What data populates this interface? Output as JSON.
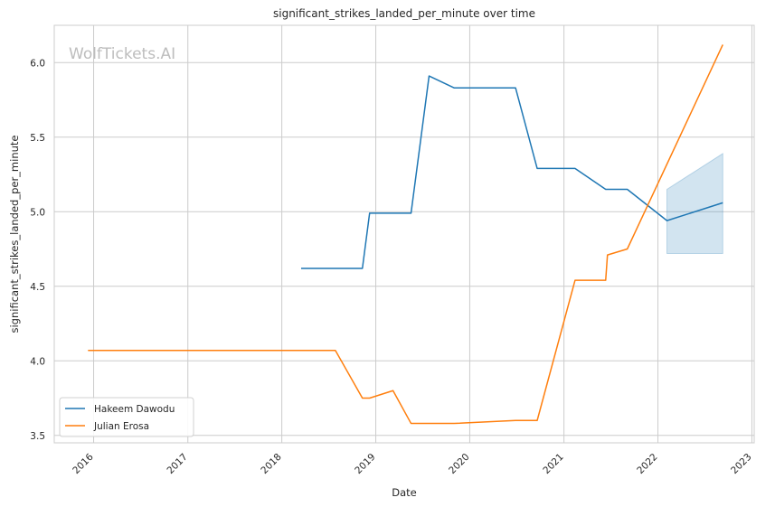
{
  "chart_data": {
    "type": "line",
    "title": "significant_strikes_landed_per_minute over time",
    "xlabel": "Date",
    "ylabel": "significant_strikes_landed_per_minute",
    "watermark": "WolfTickets.AI",
    "x_ticks": [
      "2016",
      "2017",
      "2018",
      "2019",
      "2020",
      "2021",
      "2022",
      "2023"
    ],
    "y_ticks": [
      "3.5",
      "4.0",
      "4.5",
      "5.0",
      "5.5",
      "6.0"
    ],
    "xlim": [
      "2015-08-01",
      "2023-01-10"
    ],
    "ylim": [
      3.45,
      6.25
    ],
    "grid": true,
    "legend_position": "lower-left",
    "series": [
      {
        "name": "Hakeem Dawodu",
        "color": "#1f77b4",
        "points": [
          [
            "2018-03-17",
            4.62
          ],
          [
            "2018-11-10",
            4.62
          ],
          [
            "2018-12-08",
            4.99
          ],
          [
            "2019-05-18",
            4.99
          ],
          [
            "2019-07-27",
            5.91
          ],
          [
            "2019-11-02",
            5.83
          ],
          [
            "2020-06-27",
            5.83
          ],
          [
            "2020-09-19",
            5.29
          ],
          [
            "2021-02-13",
            5.29
          ],
          [
            "2021-06-12",
            5.15
          ],
          [
            "2021-09-04",
            5.15
          ],
          [
            "2022-02-05",
            4.94
          ],
          [
            "2022-09-10",
            5.06
          ]
        ],
        "band": {
          "x": [
            "2022-02-05",
            "2022-09-10"
          ],
          "lower": [
            4.72,
            4.72
          ],
          "upper": [
            5.15,
            5.39
          ]
        }
      },
      {
        "name": "Julian Erosa",
        "color": "#ff7f0e",
        "points": [
          [
            "2015-12-10",
            4.07
          ],
          [
            "2018-07-28",
            4.07
          ],
          [
            "2018-11-10",
            3.75
          ],
          [
            "2018-12-08",
            3.75
          ],
          [
            "2019-03-09",
            3.8
          ],
          [
            "2019-05-18",
            3.58
          ],
          [
            "2019-11-02",
            3.58
          ],
          [
            "2020-06-27",
            3.6
          ],
          [
            "2020-09-19",
            3.6
          ],
          [
            "2021-02-13",
            4.54
          ],
          [
            "2021-06-12",
            4.54
          ],
          [
            "2021-06-19",
            4.71
          ],
          [
            "2021-09-04",
            4.75
          ],
          [
            "2022-09-10",
            6.12
          ]
        ]
      }
    ]
  }
}
